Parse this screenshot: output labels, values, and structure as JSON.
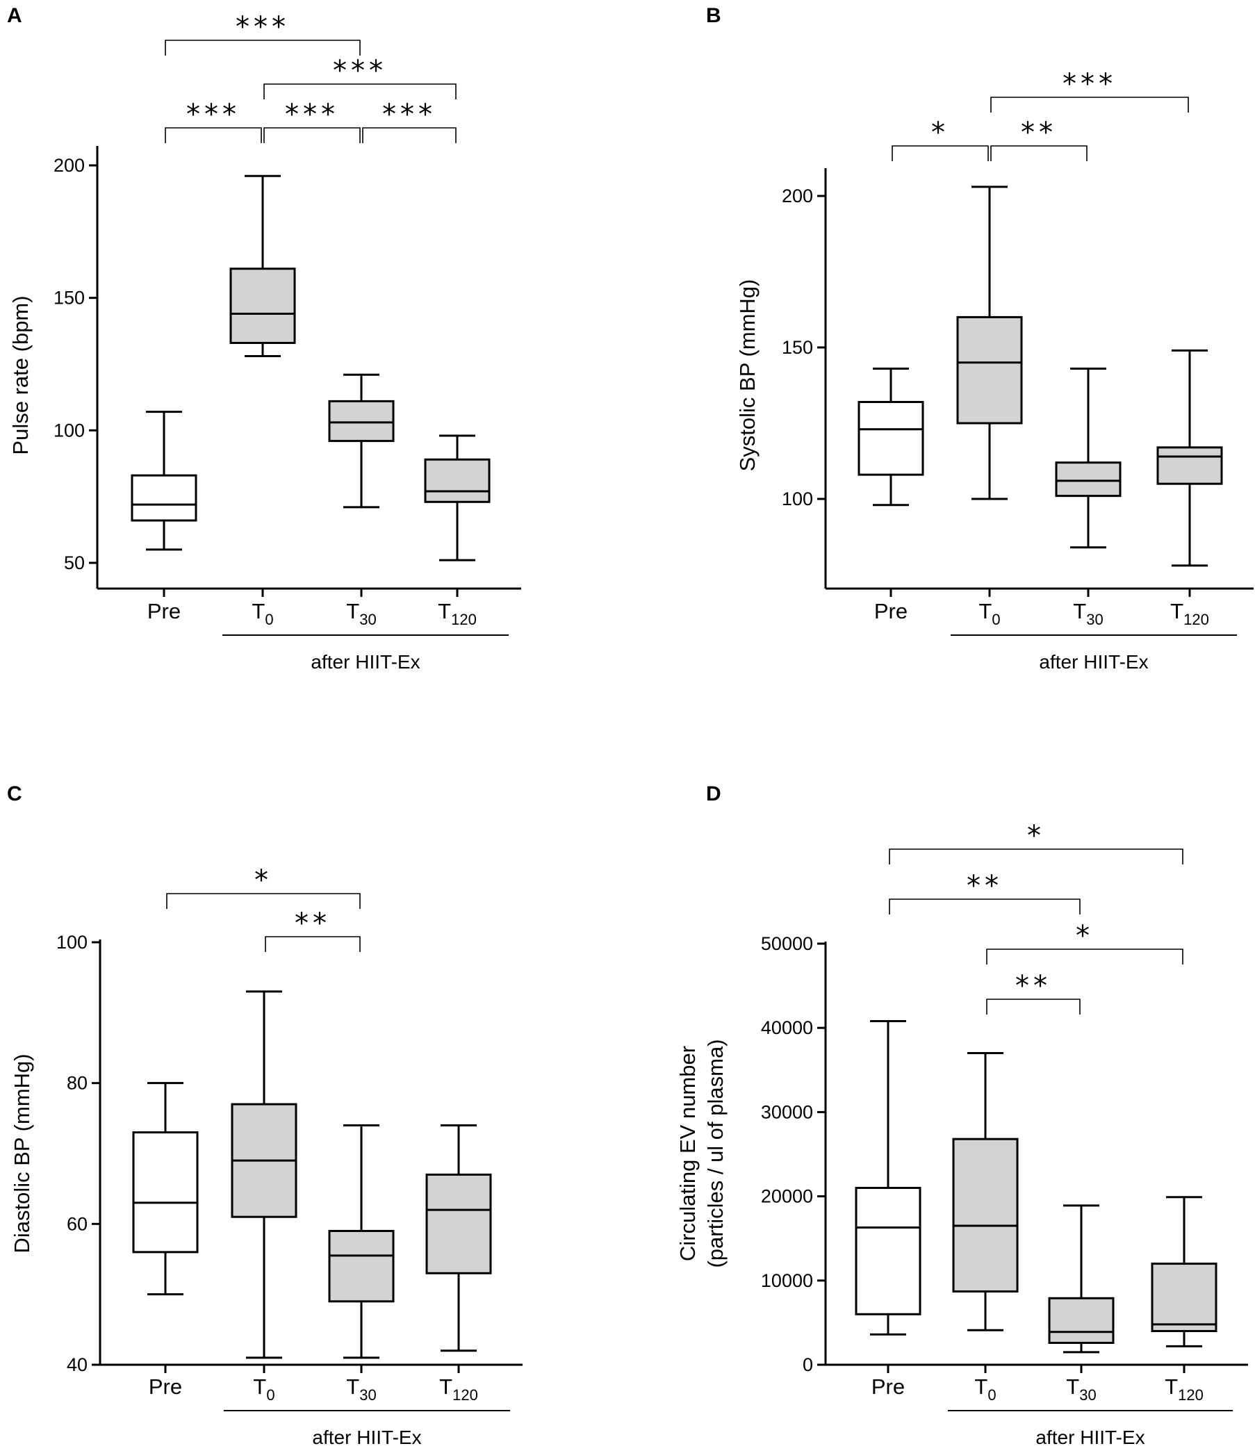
{
  "chart_data": [
    {
      "panel": "A",
      "type": "boxplot",
      "ylabel": "Pulse rate (bpm)",
      "ylim": [
        40,
        200
      ],
      "yticks": [
        50,
        100,
        150,
        200
      ],
      "categories": [
        {
          "label": "Pre",
          "sub": ""
        },
        {
          "label": "T",
          "sub": "0"
        },
        {
          "label": "T",
          "sub": "30"
        },
        {
          "label": "T",
          "sub": "120"
        }
      ],
      "group_label": "after HIIT-Ex",
      "group_span": [
        1,
        3
      ],
      "boxes": [
        {
          "min": 55,
          "q1": 66,
          "median": 72,
          "q3": 83,
          "max": 107,
          "fill": "#ffffff"
        },
        {
          "min": 128,
          "q1": 133,
          "median": 144,
          "q3": 161,
          "max": 196,
          "fill": "#d3d3d3"
        },
        {
          "min": 71,
          "q1": 96,
          "median": 103,
          "q3": 111,
          "max": 121,
          "fill": "#d3d3d3"
        },
        {
          "min": 51,
          "q1": 73,
          "median": 77,
          "q3": 89,
          "max": 98,
          "fill": "#d3d3d3"
        }
      ],
      "significance": [
        {
          "from": 0,
          "to": 2,
          "label": "***",
          "level": 3
        },
        {
          "from": 1,
          "to": 3,
          "label": "***",
          "level": 2
        },
        {
          "from": 0,
          "to": 1,
          "label": "***",
          "level": 1
        },
        {
          "from": 1,
          "to": 2,
          "label": "***",
          "level": 1
        },
        {
          "from": 2,
          "to": 3,
          "label": "***",
          "level": 1
        }
      ]
    },
    {
      "panel": "B",
      "type": "boxplot",
      "ylabel": "Systolic BP (mmHg)",
      "ylim": [
        70,
        210
      ],
      "yticks": [
        100,
        150,
        200
      ],
      "categories": [
        {
          "label": "Pre",
          "sub": ""
        },
        {
          "label": "T",
          "sub": "0"
        },
        {
          "label": "T",
          "sub": "30"
        },
        {
          "label": "T",
          "sub": "120"
        }
      ],
      "group_label": "after HIIT-Ex",
      "group_span": [
        1,
        3
      ],
      "boxes": [
        {
          "min": 98,
          "q1": 108,
          "median": 123,
          "q3": 132,
          "max": 143,
          "fill": "#ffffff"
        },
        {
          "min": 100,
          "q1": 125,
          "median": 145,
          "q3": 160,
          "max": 203,
          "fill": "#d3d3d3"
        },
        {
          "min": 84,
          "q1": 101,
          "median": 106,
          "q3": 112,
          "max": 143,
          "fill": "#d3d3d3"
        },
        {
          "min": 78,
          "q1": 105,
          "median": 114,
          "q3": 117,
          "max": 149,
          "fill": "#d3d3d3"
        }
      ],
      "significance": [
        {
          "from": 1,
          "to": 3,
          "label": "***",
          "level": 2
        },
        {
          "from": 0,
          "to": 1,
          "label": "*",
          "level": 1
        },
        {
          "from": 1,
          "to": 2,
          "label": "**",
          "level": 1
        }
      ]
    },
    {
      "panel": "C",
      "type": "boxplot",
      "ylabel": "Diastolic BP (mmHg)",
      "ylim": [
        40,
        100
      ],
      "yticks": [
        40,
        60,
        80,
        100
      ],
      "categories": [
        {
          "label": "Pre",
          "sub": ""
        },
        {
          "label": "T",
          "sub": "0"
        },
        {
          "label": "T",
          "sub": "30"
        },
        {
          "label": "T",
          "sub": "120"
        }
      ],
      "group_label": "after HIIT-Ex",
      "group_span": [
        1,
        3
      ],
      "boxes": [
        {
          "min": 50,
          "q1": 56,
          "median": 63,
          "q3": 73,
          "max": 80,
          "fill": "#ffffff"
        },
        {
          "min": 41,
          "q1": 61,
          "median": 69,
          "q3": 77,
          "max": 93,
          "fill": "#d3d3d3"
        },
        {
          "min": 41,
          "q1": 49,
          "median": 55.5,
          "q3": 59,
          "max": 74,
          "fill": "#d3d3d3"
        },
        {
          "min": 42,
          "q1": 53,
          "median": 62,
          "q3": 67,
          "max": 74,
          "fill": "#d3d3d3"
        }
      ],
      "significance": [
        {
          "from": 0,
          "to": 2,
          "label": "*",
          "level": 2
        },
        {
          "from": 1,
          "to": 2,
          "label": "**",
          "level": 1
        }
      ]
    },
    {
      "panel": "D",
      "type": "boxplot",
      "ylabel": "Circulating EV number",
      "ylabel2": "(particles / ul of plasma)",
      "ylim": [
        0,
        50000
      ],
      "yticks": [
        0,
        10000,
        20000,
        30000,
        40000,
        50000
      ],
      "categories": [
        {
          "label": "Pre",
          "sub": ""
        },
        {
          "label": "T",
          "sub": "0"
        },
        {
          "label": "T",
          "sub": "30"
        },
        {
          "label": "T",
          "sub": "120"
        }
      ],
      "group_label": "after HIIT-Ex",
      "group_span": [
        1,
        3
      ],
      "boxes": [
        {
          "min": 3600,
          "q1": 6000,
          "median": 16300,
          "q3": 21000,
          "max": 40800,
          "fill": "#ffffff"
        },
        {
          "min": 4100,
          "q1": 8700,
          "median": 16500,
          "q3": 26800,
          "max": 37000,
          "fill": "#d3d3d3"
        },
        {
          "min": 1500,
          "q1": 2600,
          "median": 3900,
          "q3": 7900,
          "max": 18900,
          "fill": "#d3d3d3"
        },
        {
          "min": 2200,
          "q1": 4000,
          "median": 4800,
          "q3": 12000,
          "max": 19900,
          "fill": "#d3d3d3"
        }
      ],
      "significance": [
        {
          "from": 0,
          "to": 3,
          "label": "*",
          "level": 4
        },
        {
          "from": 0,
          "to": 2,
          "label": "**",
          "level": 3
        },
        {
          "from": 1,
          "to": 3,
          "label": "*",
          "level": 2
        },
        {
          "from": 1,
          "to": 2,
          "label": "**",
          "level": 1
        }
      ]
    }
  ]
}
